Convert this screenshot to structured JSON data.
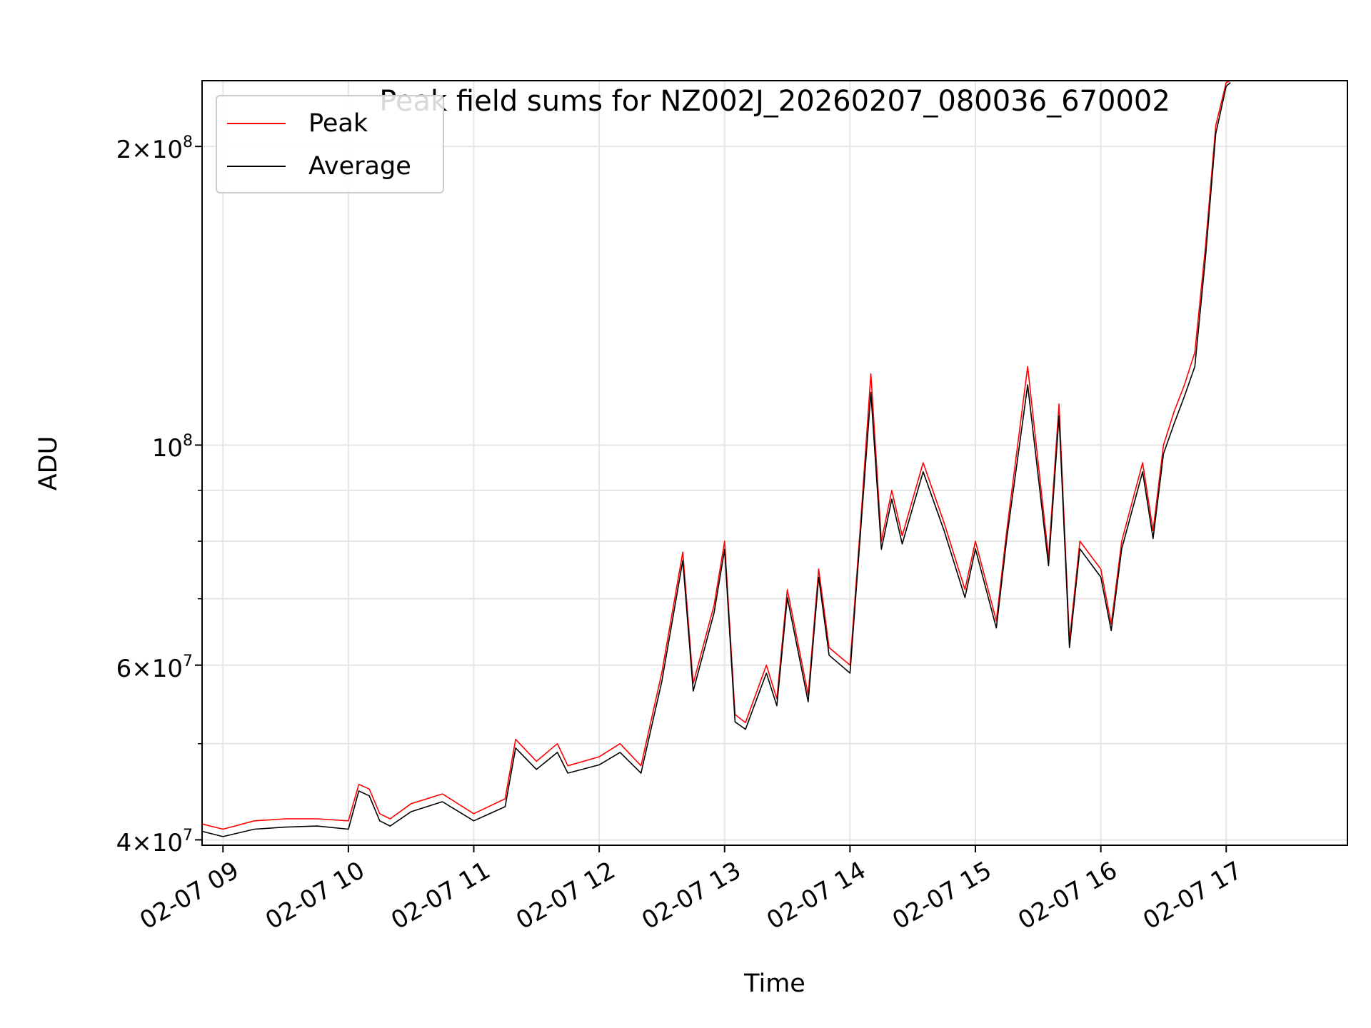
{
  "chart_data": {
    "type": "line",
    "title": "Peak field sums for NZ002J_20260207_080036_670002",
    "xlabel": "Time",
    "ylabel": "ADU",
    "yscale": "log",
    "ylim": [
      39500000,
      233000000
    ],
    "xlim": [
      "02-07 08:50",
      "02-07 17:58"
    ],
    "grid": true,
    "legend_position": "top-left",
    "x_tick_labels": [
      "02-07 09",
      "02-07 10",
      "02-07 11",
      "02-07 12",
      "02-07 13",
      "02-07 14",
      "02-07 15",
      "02-07 16",
      "02-07 17"
    ],
    "x_tick_values": [
      "02-07 09:00",
      "02-07 10:00",
      "02-07 11:00",
      "02-07 12:00",
      "02-07 13:00",
      "02-07 14:00",
      "02-07 15:00",
      "02-07 16:00",
      "02-07 17:00"
    ],
    "y_major_ticks": [
      {
        "value": 40000000,
        "mantissa": "4",
        "exponent": "7"
      },
      {
        "value": 60000000,
        "mantissa": "6",
        "exponent": "7"
      },
      {
        "value": 100000000,
        "mantissa": "",
        "exponent": "8"
      },
      {
        "value": 200000000,
        "mantissa": "2",
        "exponent": "8"
      }
    ],
    "y_minor_ticks": [
      50000000,
      70000000,
      80000000,
      90000000
    ],
    "x": [
      "02-07 08:50",
      "02-07 09:00",
      "02-07 09:15",
      "02-07 09:30",
      "02-07 09:45",
      "02-07 10:00",
      "02-07 10:05",
      "02-07 10:10",
      "02-07 10:15",
      "02-07 10:20",
      "02-07 10:30",
      "02-07 10:45",
      "02-07 11:00",
      "02-07 11:15",
      "02-07 11:20",
      "02-07 11:30",
      "02-07 11:40",
      "02-07 11:45",
      "02-07 12:00",
      "02-07 12:10",
      "02-07 12:20",
      "02-07 12:30",
      "02-07 12:40",
      "02-07 12:45",
      "02-07 12:55",
      "02-07 13:00",
      "02-07 13:05",
      "02-07 13:10",
      "02-07 13:20",
      "02-07 13:25",
      "02-07 13:30",
      "02-07 13:40",
      "02-07 13:45",
      "02-07 13:50",
      "02-07 14:00",
      "02-07 14:05",
      "02-07 14:10",
      "02-07 14:15",
      "02-07 14:20",
      "02-07 14:25",
      "02-07 14:35",
      "02-07 14:45",
      "02-07 14:55",
      "02-07 15:00",
      "02-07 15:10",
      "02-07 15:15",
      "02-07 15:25",
      "02-07 15:35",
      "02-07 15:40",
      "02-07 15:45",
      "02-07 15:50",
      "02-07 16:00",
      "02-07 16:05",
      "02-07 16:10",
      "02-07 16:20",
      "02-07 16:25",
      "02-07 16:30",
      "02-07 16:35",
      "02-07 16:40",
      "02-07 16:45",
      "02-07 16:50",
      "02-07 16:55",
      "02-07 17:00",
      "02-07 17:02"
    ],
    "series": [
      {
        "name": "Peak",
        "color": "#ff0000",
        "values": [
          41500000,
          41000000,
          41800000,
          42000000,
          42000000,
          41800000,
          45500000,
          45000000,
          42500000,
          42000000,
          43500000,
          44500000,
          42500000,
          44000000,
          50500000,
          48000000,
          50000000,
          47500000,
          48500000,
          50000000,
          47500000,
          59000000,
          78000000,
          57500000,
          69000000,
          80000000,
          53500000,
          52500000,
          60000000,
          55500000,
          71500000,
          56000000,
          75000000,
          62500000,
          60000000,
          83000000,
          118000000,
          80000000,
          90000000,
          81000000,
          96000000,
          83500000,
          71500000,
          80000000,
          66500000,
          82000000,
          120000000,
          77000000,
          110000000,
          63500000,
          80000000,
          75000000,
          66000000,
          80000000,
          96000000,
          82000000,
          100000000,
          108000000,
          115000000,
          124000000,
          158000000,
          210000000,
          232000000,
          233000000
        ]
      },
      {
        "name": "Average",
        "color": "#000000",
        "values": [
          40800000,
          40300000,
          41000000,
          41200000,
          41300000,
          41000000,
          44800000,
          44300000,
          41800000,
          41300000,
          42700000,
          43700000,
          41800000,
          43200000,
          49500000,
          47100000,
          49000000,
          46700000,
          47600000,
          49000000,
          46700000,
          57800000,
          76500000,
          56500000,
          67800000,
          78500000,
          52600000,
          51700000,
          58900000,
          54600000,
          70200000,
          55100000,
          73600000,
          61400000,
          58900000,
          81500000,
          113000000,
          78500000,
          88200000,
          79500000,
          94000000,
          82000000,
          70200000,
          78600000,
          65400000,
          80500000,
          115000000,
          75600000,
          107000000,
          62500000,
          78600000,
          73600000,
          65000000,
          78600000,
          94000000,
          80500000,
          98000000,
          105000000,
          112000000,
          120000000,
          154000000,
          206000000,
          230000000,
          232000000
        ]
      }
    ]
  }
}
